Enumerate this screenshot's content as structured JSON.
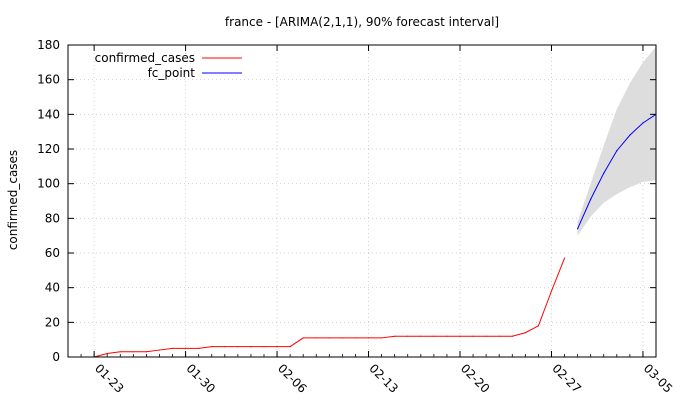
{
  "chart_data": {
    "type": "line",
    "title": "france -  [ARIMA(2,1,1), 90% forecast interval]",
    "xlabel": "",
    "ylabel": "confirmed_cases",
    "ylim": [
      0,
      180
    ],
    "yticks": [
      0,
      20,
      40,
      60,
      80,
      100,
      120,
      140,
      160,
      180
    ],
    "xlim": [
      "2020-01-21",
      "2020-03-06"
    ],
    "xticks": [
      {
        "date": "2020-01-23",
        "label": "01-23"
      },
      {
        "date": "2020-01-30",
        "label": "01-30"
      },
      {
        "date": "2020-02-06",
        "label": "02-06"
      },
      {
        "date": "2020-02-13",
        "label": "02-13"
      },
      {
        "date": "2020-02-20",
        "label": "02-20"
      },
      {
        "date": "2020-02-27",
        "label": "02-27"
      },
      {
        "date": "2020-03-05",
        "label": "03-05"
      }
    ],
    "grid": true,
    "legend_position": "top-left",
    "series": [
      {
        "name": "confirmed_cases",
        "color": "#ff0000",
        "x": [
          "2020-01-23",
          "2020-01-24",
          "2020-01-25",
          "2020-01-26",
          "2020-01-27",
          "2020-01-28",
          "2020-01-29",
          "2020-01-30",
          "2020-01-31",
          "2020-02-01",
          "2020-02-02",
          "2020-02-03",
          "2020-02-04",
          "2020-02-05",
          "2020-02-06",
          "2020-02-07",
          "2020-02-08",
          "2020-02-09",
          "2020-02-10",
          "2020-02-11",
          "2020-02-12",
          "2020-02-13",
          "2020-02-14",
          "2020-02-15",
          "2020-02-16",
          "2020-02-17",
          "2020-02-18",
          "2020-02-19",
          "2020-02-20",
          "2020-02-21",
          "2020-02-22",
          "2020-02-23",
          "2020-02-24",
          "2020-02-25",
          "2020-02-26",
          "2020-02-27",
          "2020-02-28"
        ],
        "y": [
          0,
          2,
          3,
          3,
          3,
          4,
          5,
          5,
          5,
          6,
          6,
          6,
          6,
          6,
          6,
          6,
          11,
          11,
          11,
          11,
          11,
          11,
          11,
          12,
          12,
          12,
          12,
          12,
          12,
          12,
          12,
          12,
          12,
          14,
          18,
          38,
          57
        ]
      },
      {
        "name": "fc_point",
        "color": "#0000ff",
        "x": [
          "2020-02-29",
          "2020-03-01",
          "2020-03-02",
          "2020-03-03",
          "2020-03-04",
          "2020-03-05",
          "2020-03-06"
        ],
        "y": [
          74,
          91,
          106,
          119,
          128,
          135,
          140
        ]
      }
    ],
    "forecast_interval": {
      "label": "90% forecast interval",
      "color": "#dddddd",
      "x": [
        "2020-02-29",
        "2020-03-01",
        "2020-03-02",
        "2020-03-03",
        "2020-03-04",
        "2020-03-05",
        "2020-03-06"
      ],
      "lower": [
        70,
        81,
        89,
        94,
        98,
        101,
        102
      ],
      "upper": [
        78,
        100,
        122,
        143,
        158,
        170,
        179
      ]
    }
  }
}
